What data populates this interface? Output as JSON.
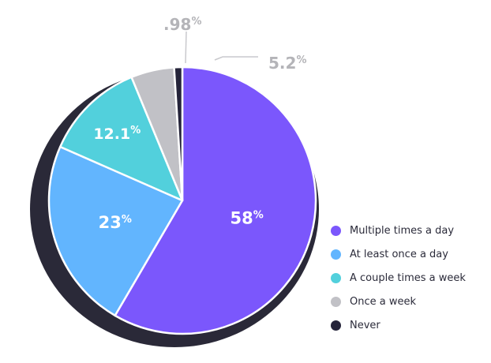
{
  "chart_data": {
    "type": "pie",
    "categories": [
      "Multiple times a day",
      "At least once a day",
      "A couple times a week",
      "Once a week",
      "Never"
    ],
    "values": [
      58,
      23,
      12.1,
      5.2,
      0.98
    ],
    "slice_labels": [
      {
        "num": "58",
        "suffix": "%"
      },
      {
        "num": "23",
        "suffix": "%"
      },
      {
        "num": "12.1",
        "suffix": "%"
      },
      {
        "num": "5.2",
        "suffix": "%"
      },
      {
        "num": ".98",
        "suffix": "%"
      }
    ],
    "colors": [
      "#7b57fc",
      "#62b5fe",
      "#52d0dc",
      "#c1c1c6",
      "#25243a"
    ],
    "shadow_color": "#2a2938",
    "legend_position": "right",
    "start": "top",
    "direction": "clockwise"
  },
  "legend": {
    "items": [
      {
        "label": "Multiple times a day",
        "color": "#7b57fc"
      },
      {
        "label": "At least once a day",
        "color": "#62b5fe"
      },
      {
        "label": "A couple times a week",
        "color": "#52d0dc"
      },
      {
        "label": "Once a week",
        "color": "#c1c1c6"
      },
      {
        "label": "Never",
        "color": "#25243a"
      }
    ]
  }
}
